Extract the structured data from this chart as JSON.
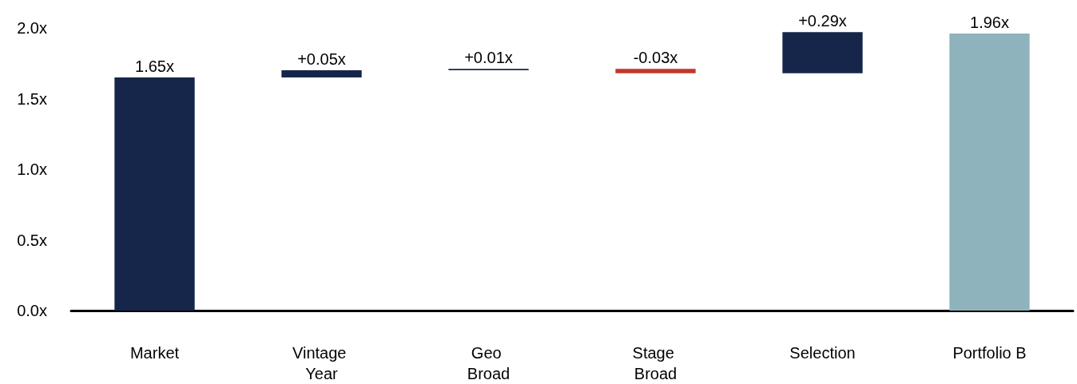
{
  "chart_data": {
    "type": "bar",
    "categories": [
      "Market",
      "Vintage Year",
      "Geo Broad",
      "Stage Broad",
      "Selection",
      "Portfolio B"
    ],
    "base": [
      0,
      1.65,
      1.7,
      1.71,
      1.68,
      0
    ],
    "values": [
      1.65,
      0.05,
      0.01,
      -0.03,
      0.29,
      1.96
    ],
    "colors": [
      "#15264a",
      "#15264a",
      "#15264a",
      "#c0392b",
      "#15264a",
      "#8fb3bd"
    ],
    "value_labels": [
      "1.65x",
      "+0.05x",
      "+0.01x",
      "-0.03x",
      "+0.29x",
      "1.96x"
    ],
    "ylim": [
      0,
      2.0
    ],
    "yticks": [
      {
        "value": 0,
        "label": "0.0x"
      },
      {
        "value": 0.5,
        "label": "0.5x"
      },
      {
        "value": 1.0,
        "label": "1.0x"
      },
      {
        "value": 1.5,
        "label": "1.5x"
      },
      {
        "value": 2.0,
        "label": "2.0x"
      }
    ],
    "grid": false
  }
}
